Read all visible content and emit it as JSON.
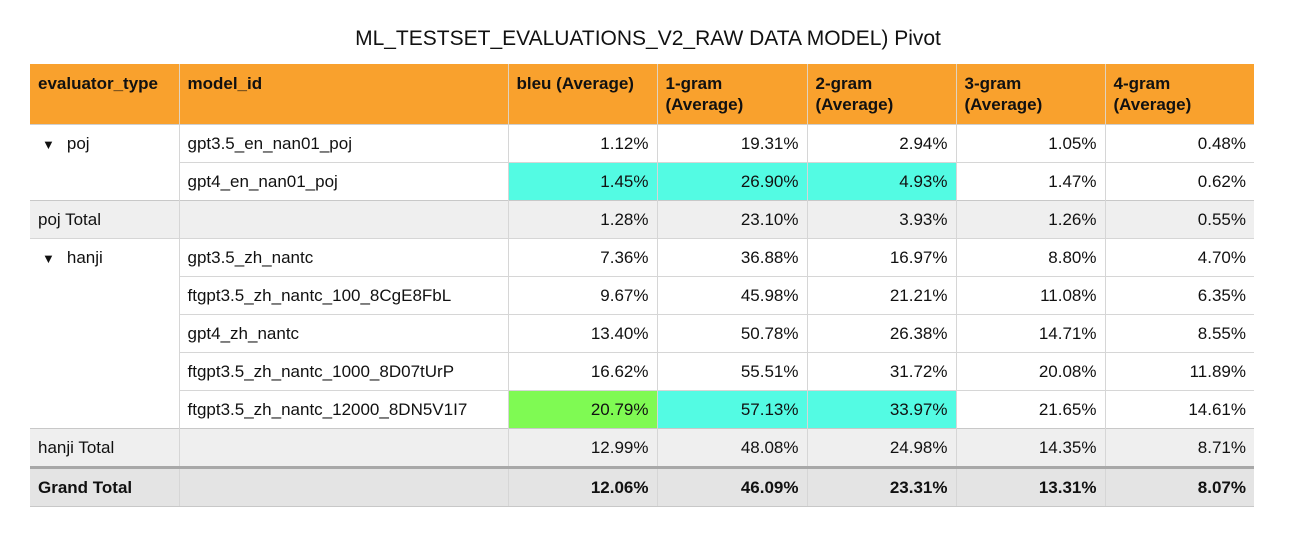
{
  "title": "ML_TESTSET_EVALUATIONS_V2_RAW DATA MODEL) Pivot",
  "headers": [
    "evaluator_type",
    "model_id",
    "bleu (Average)",
    "1-gram (Average)",
    "2-gram (Average)",
    "3-gram (Average)",
    "4-gram (Average)"
  ],
  "groups": [
    {
      "name": "poj",
      "rows": [
        {
          "model": "gpt3.5_en_nan01_poj",
          "values": [
            "1.12%",
            "19.31%",
            "2.94%",
            "1.05%",
            "0.48%"
          ]
        },
        {
          "model": "gpt4_en_nan01_poj",
          "values": [
            "1.45%",
            "26.90%",
            "4.93%",
            "1.47%",
            "0.62%"
          ]
        }
      ],
      "total_label": "poj Total",
      "total": [
        "1.28%",
        "23.10%",
        "3.93%",
        "1.26%",
        "0.55%"
      ]
    },
    {
      "name": "hanji",
      "rows": [
        {
          "model": "gpt3.5_zh_nantc",
          "values": [
            "7.36%",
            "36.88%",
            "16.97%",
            "8.80%",
            "4.70%"
          ]
        },
        {
          "model": "ftgpt3.5_zh_nantc_100_8CgE8FbL",
          "values": [
            "9.67%",
            "45.98%",
            "21.21%",
            "11.08%",
            "6.35%"
          ]
        },
        {
          "model": "gpt4_zh_nantc",
          "values": [
            "13.40%",
            "50.78%",
            "26.38%",
            "14.71%",
            "8.55%"
          ]
        },
        {
          "model": "ftgpt3.5_zh_nantc_1000_8D07tUrP",
          "values": [
            "16.62%",
            "55.51%",
            "31.72%",
            "20.08%",
            "11.89%"
          ]
        },
        {
          "model": "ftgpt3.5_zh_nantc_12000_8DN5V1I7",
          "values": [
            "20.79%",
            "57.13%",
            "33.97%",
            "21.65%",
            "14.61%"
          ]
        }
      ],
      "total_label": "hanji Total",
      "total": [
        "12.99%",
        "48.08%",
        "24.98%",
        "14.35%",
        "8.71%"
      ]
    }
  ],
  "grand_total_label": "Grand Total",
  "grand_total": [
    "12.06%",
    "46.09%",
    "23.31%",
    "13.31%",
    "8.07%"
  ],
  "expand_icon": "▼",
  "colors": {
    "header": "#f9a12d",
    "highlight_cyan": "#53fbe3",
    "highlight_green": "#7ffa53"
  },
  "highlights": [
    {
      "group": 0,
      "row": 1,
      "col": 0,
      "color": "cyan"
    },
    {
      "group": 0,
      "row": 1,
      "col": 1,
      "color": "cyan"
    },
    {
      "group": 0,
      "row": 1,
      "col": 2,
      "color": "cyan"
    },
    {
      "group": 1,
      "row": 4,
      "col": 0,
      "color": "green"
    },
    {
      "group": 1,
      "row": 4,
      "col": 1,
      "color": "cyan"
    },
    {
      "group": 1,
      "row": 4,
      "col": 2,
      "color": "cyan"
    }
  ]
}
